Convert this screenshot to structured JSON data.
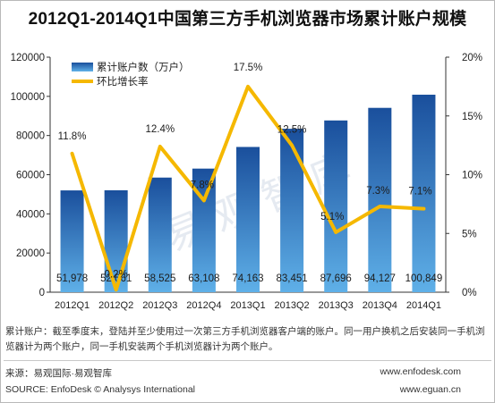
{
  "title": "2012Q1-2014Q1中国第三方手机浏览器市场累计账户规模",
  "note": "累计账户：截至季度末，登陆并至少使用过一次第三方手机浏览器客户端的账户。同一用户换机之后安装同一手机浏览器计为两个账户，同一手机安装两个手机浏览器计为两个账户。",
  "source_left_1": "来源：易观国际·易观智库",
  "source_left_2": "SOURCE: EnfoDesk © Analysys International",
  "source_right_1": "www.enfodesk.com",
  "source_right_2": "www.eguan.cn",
  "watermark": "易观智库",
  "colors": {
    "bar_top": "#1a4f9c",
    "bar_bottom": "#5fb0e8",
    "line": "#f5b800"
  },
  "chart_data": {
    "type": "bar",
    "categories": [
      "2012Q1",
      "2012Q2",
      "2012Q3",
      "2012Q4",
      "2013Q1",
      "2013Q2",
      "2013Q3",
      "2013Q4",
      "2014Q1"
    ],
    "series": [
      {
        "name": "累计账户数（万户）",
        "type": "bar",
        "axis": "left",
        "values": [
          51978,
          52061,
          58525,
          63108,
          74163,
          83451,
          87696,
          94127,
          100849
        ],
        "labels": [
          "51,978",
          "52,061",
          "58,525",
          "63,108",
          "74,163",
          "83,451",
          "87,696",
          "94,127",
          "100,849"
        ]
      },
      {
        "name": "环比增长率",
        "type": "line",
        "axis": "right",
        "values": [
          11.8,
          0.2,
          12.4,
          7.8,
          17.5,
          12.5,
          5.1,
          7.3,
          7.1
        ],
        "labels": [
          "11.8%",
          "0.2%",
          "12.4%",
          "7.8%",
          "17.5%",
          "12.5%",
          "5.1%",
          "7.3%",
          "7.1%"
        ]
      }
    ],
    "ylim": [
      0,
      120000
    ],
    "y_ticks": [
      "0",
      "20000",
      "40000",
      "60000",
      "80000",
      "100000",
      "120000"
    ],
    "y2lim": [
      0,
      20
    ],
    "y2_ticks": [
      "0%",
      "5%",
      "10%",
      "15%",
      "20%"
    ],
    "grid": false,
    "legend_position": "top-left"
  }
}
